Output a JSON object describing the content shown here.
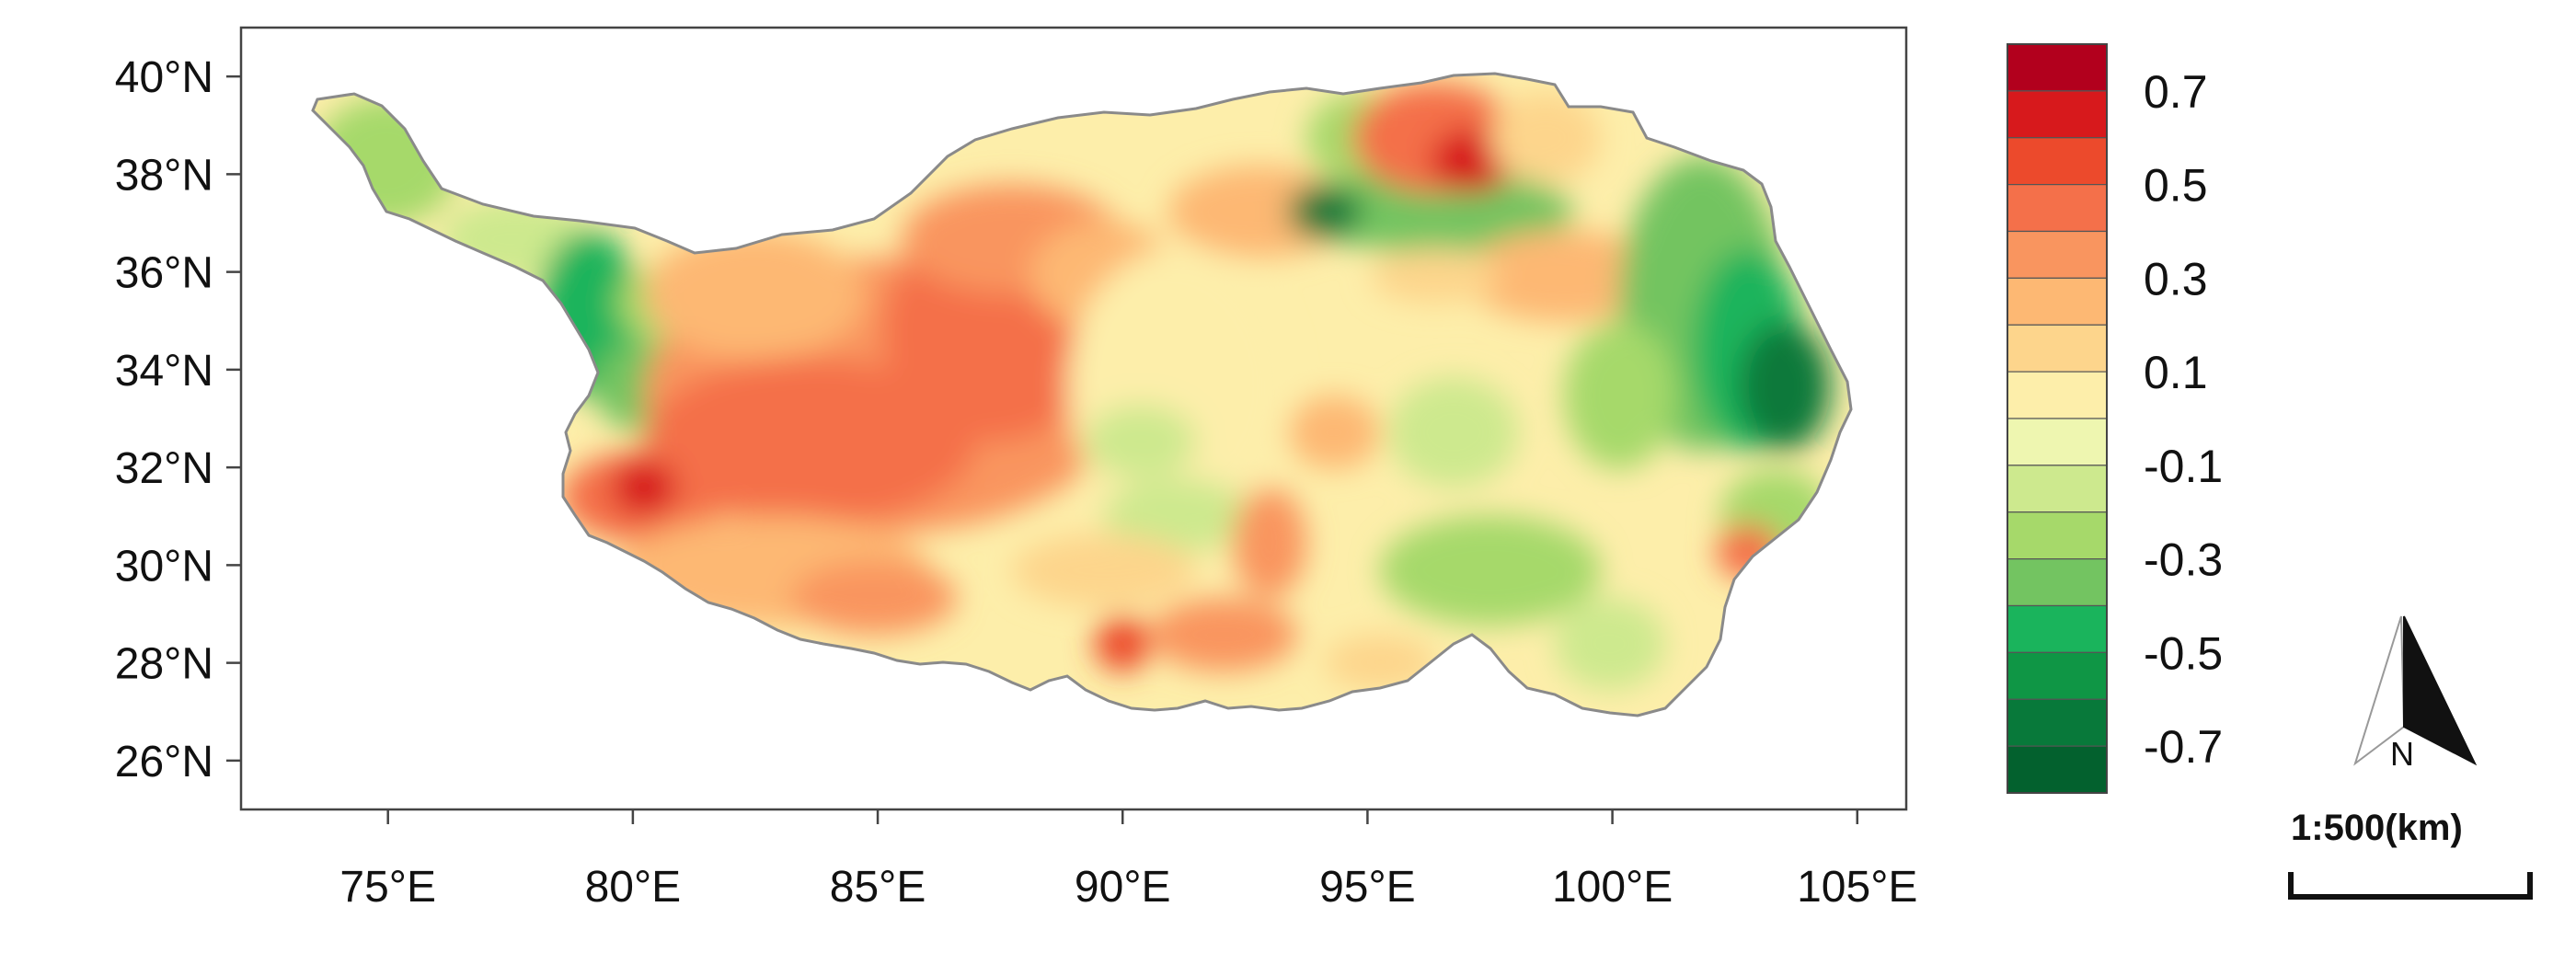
{
  "map": {
    "lon_ticks": [
      "75°E",
      "80°E",
      "85°E",
      "90°E",
      "95°E",
      "100°E",
      "105°E"
    ],
    "lat_ticks": [
      "40°N",
      "38°N",
      "36°N",
      "34°N",
      "32°N",
      "30°N",
      "28°N",
      "26°N"
    ],
    "lon_values": [
      75,
      80,
      85,
      90,
      95,
      100,
      105
    ],
    "lat_values": [
      40,
      38,
      36,
      34,
      32,
      30,
      28,
      26
    ],
    "extent": {
      "lon": [
        72,
        106
      ],
      "lat": [
        25,
        41
      ]
    }
  },
  "legend": {
    "labels": [
      "0.7",
      "0.5",
      "0.3",
      "0.1",
      "-0.1",
      "-0.3",
      "-0.5",
      "-0.7"
    ],
    "colors": [
      "#b2001d",
      "#d7191c",
      "#ec4a2c",
      "#f4704a",
      "#f9955f",
      "#fdb873",
      "#fdd58c",
      "#fdeeaa",
      "#eef6b0",
      "#cde98e",
      "#a6d96a",
      "#73c461",
      "#1ab45c",
      "#0f9645",
      "#08793a",
      "#03612e"
    ]
  },
  "north_arrow": {
    "label": "N"
  },
  "scale_bar": {
    "label": "1:500(km)"
  },
  "palette": {
    "strong_pos": "#d7191c",
    "pos": "#f4704a",
    "weak_pos": "#fdb873",
    "neutral": "#fdeeaa",
    "weak_neg": "#cde98e",
    "neg": "#73c461",
    "strong_neg": "#08793a"
  }
}
